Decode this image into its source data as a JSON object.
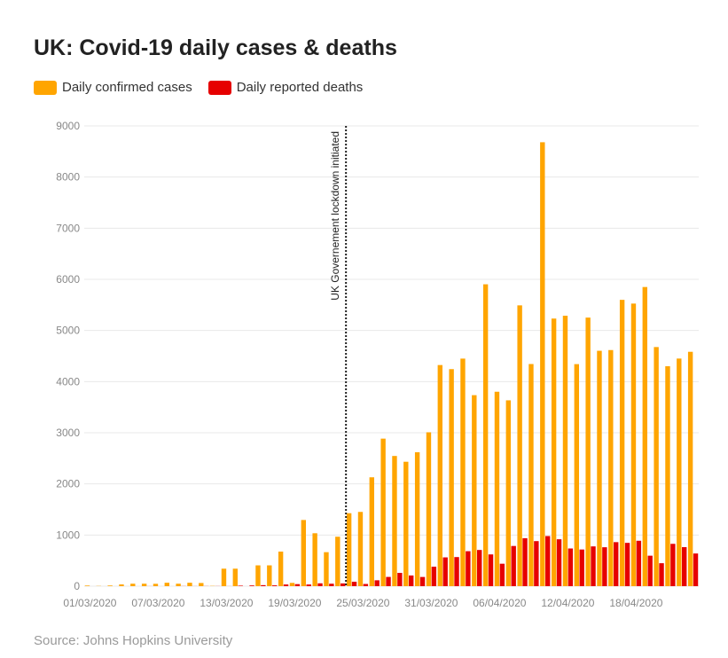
{
  "title": "UK: Covid-19 daily cases & deaths",
  "source": "Source: Johns Hopkins University",
  "colors": {
    "cases": "#ffa500",
    "deaths": "#e60000",
    "grid": "#e8e8e8",
    "annotation_line": "#222222"
  },
  "chart_data": {
    "type": "bar",
    "title": "UK: Covid-19 daily cases & deaths",
    "xlabel": "",
    "ylabel": "",
    "ylim": [
      0,
      9000
    ],
    "yticks": [
      0,
      1000,
      2000,
      3000,
      4000,
      5000,
      6000,
      7000,
      8000,
      9000
    ],
    "grid": true,
    "legend_position": "top-left",
    "categories": [
      "01/03/2020",
      "02/03/2020",
      "03/03/2020",
      "04/03/2020",
      "05/03/2020",
      "06/03/2020",
      "07/03/2020",
      "08/03/2020",
      "09/03/2020",
      "10/03/2020",
      "11/03/2020",
      "12/03/2020",
      "13/03/2020",
      "14/03/2020",
      "15/03/2020",
      "16/03/2020",
      "17/03/2020",
      "18/03/2020",
      "19/03/2020",
      "20/03/2020",
      "21/03/2020",
      "22/03/2020",
      "23/03/2020",
      "24/03/2020",
      "25/03/2020",
      "26/03/2020",
      "27/03/2020",
      "28/03/2020",
      "29/03/2020",
      "30/03/2020",
      "31/03/2020",
      "01/04/2020",
      "02/04/2020",
      "03/04/2020",
      "04/04/2020",
      "05/04/2020",
      "06/04/2020",
      "07/04/2020",
      "08/04/2020",
      "09/04/2020",
      "10/04/2020",
      "11/04/2020",
      "12/04/2020",
      "13/04/2020",
      "14/04/2020",
      "15/04/2020",
      "16/04/2020",
      "17/04/2020",
      "18/04/2020",
      "19/04/2020",
      "20/04/2020",
      "21/04/2020",
      "22/04/2020",
      "23/04/2020"
    ],
    "x_tick_labels": [
      "01/03/2020",
      "07/03/2020",
      "13/03/2020",
      "19/03/2020",
      "25/03/2020",
      "31/03/2020",
      "06/04/2020",
      "12/04/2020",
      "18/04/2020"
    ],
    "series": [
      {
        "name": "Daily confirmed cases",
        "values": [
          12,
          4,
          13,
          34,
          48,
          48,
          46,
          67,
          48,
          67,
          62,
          5,
          342,
          342,
          0,
          407,
          407,
          676,
          64,
          1294,
          1035,
          665,
          967,
          1427,
          1452,
          2129,
          2885,
          2546,
          2433,
          2619,
          3009,
          4324,
          4244,
          4450,
          3735,
          5903,
          3802,
          3634,
          5491,
          4344,
          8681,
          5233,
          5288,
          4342,
          5252,
          4603,
          4617,
          5599,
          5526,
          5850,
          4676,
          4301,
          4451,
          4583
        ]
      },
      {
        "name": "Daily reported deaths",
        "values": [
          0,
          0,
          0,
          0,
          0,
          1,
          0,
          0,
          2,
          1,
          2,
          2,
          1,
          10,
          14,
          20,
          16,
          33,
          40,
          33,
          56,
          48,
          54,
          87,
          43,
          115,
          181,
          260,
          209,
          180,
          381,
          563,
          569,
          684,
          708,
          621,
          439,
          786,
          938,
          881,
          980,
          917,
          737,
          717,
          778,
          761,
          861,
          847,
          888,
          596,
          449,
          828,
          763,
          639
        ]
      }
    ],
    "annotations": [
      {
        "text": "UK Governement lockdown initiated",
        "x": "23/03/2020",
        "style": "dotted vertical line"
      }
    ]
  }
}
